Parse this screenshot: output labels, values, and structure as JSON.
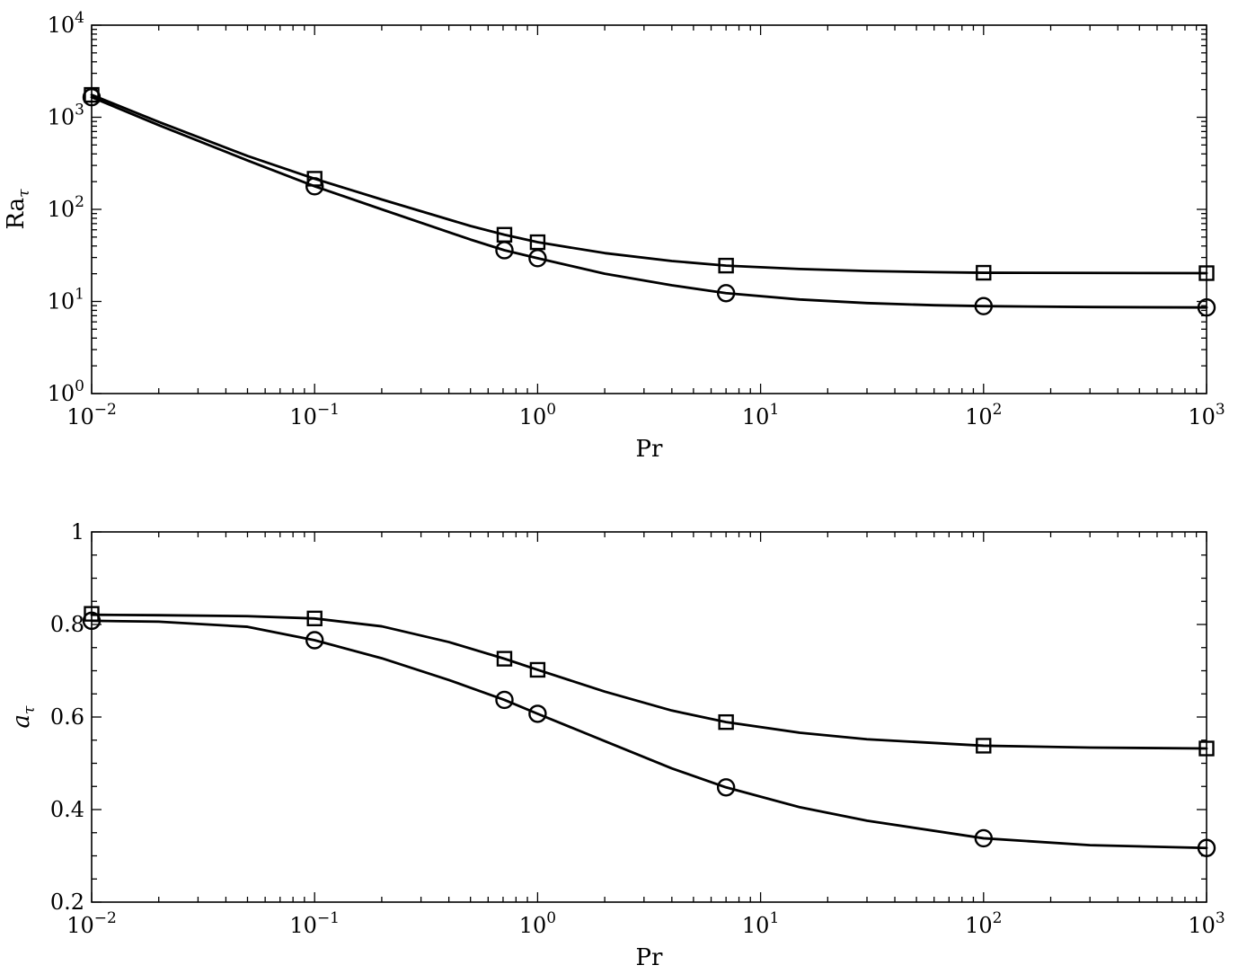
{
  "chart_data": [
    {
      "type": "line",
      "xlabel": "Pr",
      "ylabel": "Ra",
      "ylabel_sub": "τ",
      "x_scale": "log",
      "y_scale": "log",
      "xlim": [
        0.01,
        1000
      ],
      "ylim": [
        1,
        10000
      ],
      "x_ticks": [
        {
          "base": "10",
          "exp": "−2",
          "value": 0.01
        },
        {
          "base": "10",
          "exp": "−1",
          "value": 0.1
        },
        {
          "base": "10",
          "exp": "0",
          "value": 1
        },
        {
          "base": "10",
          "exp": "1",
          "value": 10
        },
        {
          "base": "10",
          "exp": "2",
          "value": 100
        },
        {
          "base": "10",
          "exp": "3",
          "value": 1000
        }
      ],
      "y_ticks": [
        {
          "base": "10",
          "exp": "0",
          "value": 1
        },
        {
          "base": "10",
          "exp": "1",
          "value": 10
        },
        {
          "base": "10",
          "exp": "2",
          "value": 100
        },
        {
          "base": "10",
          "exp": "3",
          "value": 1000
        },
        {
          "base": "10",
          "exp": "4",
          "value": 10000
        }
      ],
      "grid": false,
      "legend": "none",
      "series": [
        {
          "marker": "square",
          "x": [
            0.01,
            0.1,
            0.71,
            1,
            7,
            100,
            1000
          ],
          "y": [
            1750,
            215,
            53,
            44,
            24.5,
            20.5,
            20.3
          ],
          "curve": {
            "x": [
              0.01,
              0.02,
              0.05,
              0.1,
              0.2,
              0.5,
              0.71,
              1,
              2,
              4,
              7,
              15,
              30,
              60,
              100,
              300,
              1000
            ],
            "y": [
              1750,
              890,
              380,
              215,
              128,
              66,
              53,
              44,
              33.5,
              27.5,
              24.5,
              22.5,
              21.4,
              20.8,
              20.5,
              20.4,
              20.3
            ]
          }
        },
        {
          "marker": "circle",
          "x": [
            0.01,
            0.1,
            0.71,
            1,
            7,
            100,
            1000
          ],
          "y": [
            1650,
            178,
            36,
            29.5,
            12.3,
            8.9,
            8.6
          ],
          "curve": {
            "x": [
              0.01,
              0.02,
              0.05,
              0.1,
              0.2,
              0.5,
              0.71,
              1,
              2,
              4,
              7,
              15,
              30,
              60,
              100,
              300,
              1000
            ],
            "y": [
              1650,
              820,
              340,
              178,
              100,
              47,
              36,
              29.5,
              20,
              15,
              12.3,
              10.5,
              9.6,
              9.1,
              8.9,
              8.7,
              8.6
            ]
          }
        }
      ]
    },
    {
      "type": "line",
      "xlabel": "Pr",
      "ylabel": "a",
      "ylabel_sub": "τ",
      "x_scale": "log",
      "y_scale": "linear",
      "xlim": [
        0.01,
        1000
      ],
      "ylim": [
        0.2,
        1
      ],
      "x_ticks": [
        {
          "base": "10",
          "exp": "−2",
          "value": 0.01
        },
        {
          "base": "10",
          "exp": "−1",
          "value": 0.1
        },
        {
          "base": "10",
          "exp": "0",
          "value": 1
        },
        {
          "base": "10",
          "exp": "1",
          "value": 10
        },
        {
          "base": "10",
          "exp": "2",
          "value": 100
        },
        {
          "base": "10",
          "exp": "3",
          "value": 1000
        }
      ],
      "y_ticks": [
        {
          "label": "0.2",
          "value": 0.2
        },
        {
          "label": "0.4",
          "value": 0.4
        },
        {
          "label": "0.6",
          "value": 0.6
        },
        {
          "label": "0.8",
          "value": 0.8
        },
        {
          "label": "1",
          "value": 1
        }
      ],
      "grid": false,
      "legend": "none",
      "series": [
        {
          "marker": "square",
          "x": [
            0.01,
            0.1,
            0.71,
            1,
            7,
            100,
            1000
          ],
          "y": [
            0.823,
            0.813,
            0.726,
            0.702,
            0.589,
            0.538,
            0.532
          ],
          "curve": {
            "x": [
              0.01,
              0.02,
              0.05,
              0.1,
              0.2,
              0.4,
              0.71,
              1,
              2,
              4,
              7,
              15,
              30,
              100,
              300,
              1000
            ],
            "y": [
              0.821,
              0.82,
              0.818,
              0.813,
              0.796,
              0.762,
              0.726,
              0.702,
              0.655,
              0.614,
              0.589,
              0.566,
              0.552,
              0.538,
              0.534,
              0.532
            ]
          }
        },
        {
          "marker": "circle",
          "x": [
            0.01,
            0.1,
            0.71,
            1,
            7,
            100,
            1000
          ],
          "y": [
            0.808,
            0.766,
            0.637,
            0.607,
            0.448,
            0.338,
            0.317
          ],
          "curve": {
            "x": [
              0.01,
              0.02,
              0.05,
              0.1,
              0.2,
              0.4,
              0.71,
              1,
              2,
              4,
              7,
              15,
              30,
              100,
              300,
              1000
            ],
            "y": [
              0.808,
              0.806,
              0.795,
              0.766,
              0.727,
              0.68,
              0.637,
              0.607,
              0.548,
              0.489,
              0.448,
              0.405,
              0.376,
              0.338,
              0.323,
              0.317
            ]
          }
        }
      ]
    }
  ]
}
